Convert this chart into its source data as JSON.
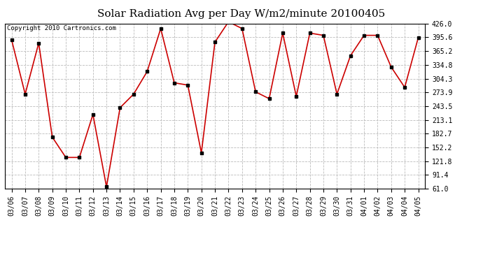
{
  "title": "Solar Radiation Avg per Day W/m2/minute 20100405",
  "copyright": "Copyright 2010 Cartronics.com",
  "x_labels": [
    "03/06",
    "03/07",
    "03/08",
    "03/09",
    "03/10",
    "03/11",
    "03/12",
    "03/13",
    "03/14",
    "03/15",
    "03/16",
    "03/17",
    "03/18",
    "03/19",
    "03/20",
    "03/21",
    "03/22",
    "03/23",
    "03/24",
    "03/25",
    "03/26",
    "03/27",
    "03/28",
    "03/29",
    "03/30",
    "03/31",
    "04/01",
    "04/02",
    "04/03",
    "04/04",
    "04/05"
  ],
  "y_values": [
    390,
    270,
    383,
    175,
    130,
    130,
    225,
    65,
    240,
    270,
    320,
    415,
    295,
    290,
    140,
    385,
    430,
    415,
    275,
    260,
    405,
    265,
    405,
    400,
    270,
    355,
    400,
    400,
    330,
    285,
    395
  ],
  "y_ticks": [
    61.0,
    91.4,
    121.8,
    152.2,
    182.7,
    213.1,
    243.5,
    273.9,
    304.3,
    334.8,
    365.2,
    395.6,
    426.0
  ],
  "y_tick_labels": [
    "61.0",
    "91.4",
    "121.8",
    "152.2",
    "182.7",
    "213.1",
    "243.5",
    "273.9",
    "304.3",
    "334.8",
    "365.2",
    "395.6",
    "426.0"
  ],
  "y_min": 61.0,
  "y_max": 426.0,
  "line_color": "#cc0000",
  "marker": "s",
  "marker_size": 2.5,
  "bg_color": "#ffffff",
  "plot_bg_color": "#ffffff",
  "grid_color": "#bbbbbb",
  "title_fontsize": 11,
  "copyright_fontsize": 6.5,
  "tick_fontsize": 7
}
